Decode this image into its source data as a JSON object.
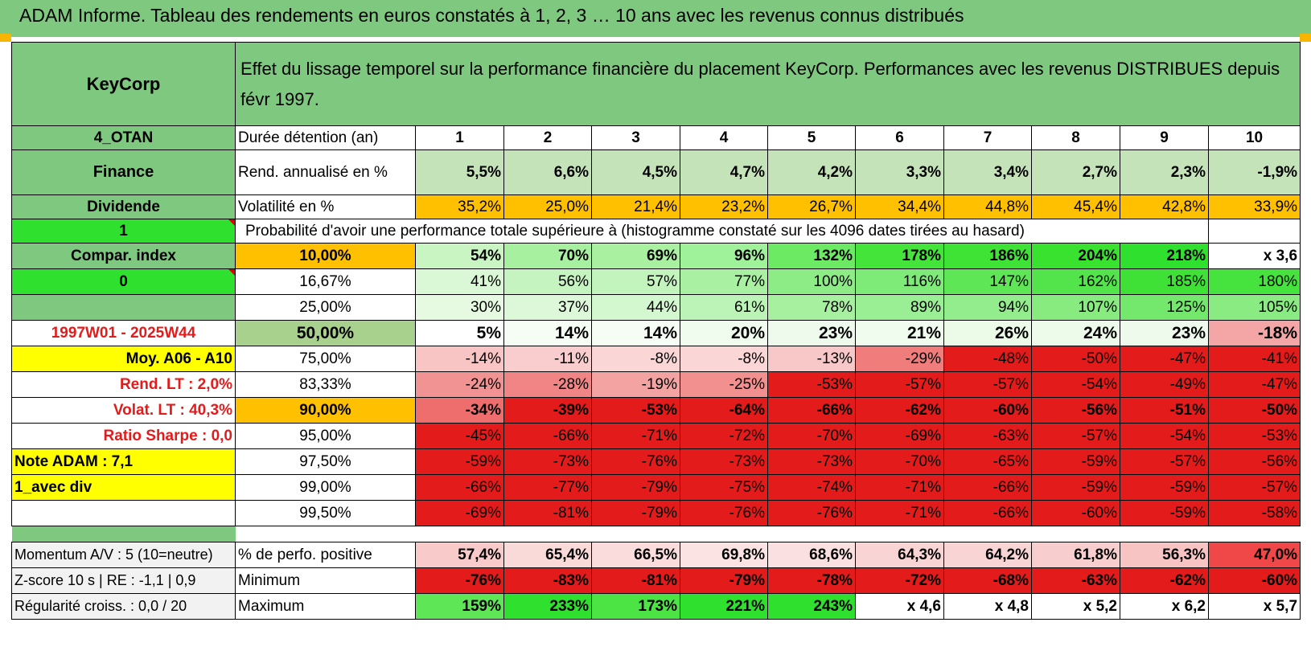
{
  "title": "ADAM Informe. Tableau des rendements en euros constatés à 1, 2, 3 … 10 ans avec les revenus connus distribués",
  "header": {
    "name": "KeyCorp",
    "description": "Effet du lissage temporel sur la performance financière du placement KeyCorp. Performances avec les revenus DISTRIBUES depuis févr 1997."
  },
  "left": {
    "r1": "4_OTAN",
    "r2": "Finance",
    "r3": "Dividende",
    "r4": "1",
    "r5": "Compar. index",
    "r6": "0",
    "r7": "",
    "r8": "1997W01 - 2025W44",
    "r9": "Moy. A06 - A10",
    "r10": "Rend. LT :    2,0%",
    "r11": "Volat. LT :    40,3%",
    "r12": "Ratio Sharpe :     0,0",
    "r13": "Note ADAM : 7,1",
    "r14": "1_avec div",
    "r15": "",
    "m1": "Momentum A/V : 5 (10=neutre)",
    "m2": "Z-score 10 s | RE : -1,1 | 0,9",
    "m3": "Régularité croiss. : 0,0 / 20"
  },
  "labels": {
    "duration": "Durée détention (an)",
    "rend": "Rend. annualisé en %",
    "vol": "Volatilité en %",
    "prob": "Probabilité d'avoir une performance totale supérieure à (histogramme constaté sur les 4096 dates tirées au hasard)",
    "pos": "% de perfo. positive",
    "min": "Minimum",
    "max": "Maximum"
  },
  "years": [
    "1",
    "2",
    "3",
    "4",
    "5",
    "6",
    "7",
    "8",
    "9",
    "10"
  ],
  "rend": [
    "5,5%",
    "6,6%",
    "4,5%",
    "4,7%",
    "4,2%",
    "3,3%",
    "3,4%",
    "2,7%",
    "2,3%",
    "-1,9%"
  ],
  "vol": [
    "35,2%",
    "25,0%",
    "21,4%",
    "23,2%",
    "26,7%",
    "34,4%",
    "44,8%",
    "45,4%",
    "42,8%",
    "33,9%"
  ],
  "vol_colors": [
    "#ffc000",
    "#ffc000",
    "#ffc000",
    "#ffc000",
    "#ffc000",
    "#ffc000",
    "#ffc000",
    "#ffc000",
    "#ffc000",
    "#ffc000"
  ],
  "prob_rows": [
    {
      "label": "10,00%",
      "label_bg": "#ffc000",
      "bold": true,
      "values": [
        "54%",
        "70%",
        "69%",
        "96%",
        "132%",
        "178%",
        "186%",
        "204%",
        "218%",
        "x 3,6"
      ],
      "colors": [
        "#c9f5c3",
        "#a7f09f",
        "#a9f0a1",
        "#9ff29a",
        "#6cea63",
        "#45e43b",
        "#3fe335",
        "#3ae230",
        "#2fe02f",
        "#ffffff"
      ]
    },
    {
      "label": "16,67%",
      "label_bg": "#ffffff",
      "bold": false,
      "values": [
        "41%",
        "56%",
        "57%",
        "77%",
        "100%",
        "116%",
        "147%",
        "162%",
        "185%",
        "180%"
      ],
      "colors": [
        "#dbf8d6",
        "#c6f4c1",
        "#c3f4bd",
        "#a9f0a3",
        "#8eec87",
        "#7eea77",
        "#5fe657",
        "#52e44a",
        "#40e137",
        "#46e23d"
      ]
    },
    {
      "label": "25,00%",
      "label_bg": "#ffffff",
      "bold": false,
      "values": [
        "30%",
        "37%",
        "44%",
        "61%",
        "78%",
        "89%",
        "94%",
        "107%",
        "125%",
        "105%"
      ],
      "colors": [
        "#e6fae2",
        "#ddf8d9",
        "#d3f7ce",
        "#bcf3b6",
        "#a6f0a0",
        "#9aee93",
        "#94ed8d",
        "#87eb80",
        "#74e86c",
        "#89eb82"
      ]
    },
    {
      "label": "50,00%",
      "label_bg": "#a9d18e",
      "bold": true,
      "big": true,
      "values": [
        "5%",
        "14%",
        "14%",
        "20%",
        "23%",
        "21%",
        "26%",
        "24%",
        "23%",
        "-18%"
      ],
      "colors": [
        "#ffffff",
        "#f6fdf5",
        "#f6fdf5",
        "#f0fcee",
        "#eefbec",
        "#f0fcee",
        "#ebfbe8",
        "#edfbea",
        "#eefbec",
        "#f4a6a6"
      ]
    },
    {
      "label": "75,00%",
      "label_bg": "#ffffff",
      "bold": false,
      "values": [
        "-14%",
        "-11%",
        "-8%",
        "-8%",
        "-13%",
        "-29%",
        "-48%",
        "-50%",
        "-47%",
        "-41%"
      ],
      "colors": [
        "#f8c4c4",
        "#f9cdcd",
        "#fad6d6",
        "#fad6d6",
        "#f8c7c7",
        "#f07c7c",
        "#e31b1b",
        "#e31b1b",
        "#e31b1b",
        "#e31b1b"
      ]
    },
    {
      "label": "83,33%",
      "label_bg": "#ffffff",
      "bold": false,
      "values": [
        "-24%",
        "-28%",
        "-19%",
        "-25%",
        "-53%",
        "-57%",
        "-57%",
        "-54%",
        "-49%",
        "-47%"
      ],
      "colors": [
        "#f29393",
        "#f18484",
        "#f4a3a3",
        "#f29090",
        "#e31b1b",
        "#e31b1b",
        "#e31b1b",
        "#e31b1b",
        "#e31b1b",
        "#e31b1b"
      ]
    },
    {
      "label": "90,00%",
      "label_bg": "#ffc000",
      "bold": true,
      "values": [
        "-34%",
        "-39%",
        "-53%",
        "-64%",
        "-66%",
        "-62%",
        "-60%",
        "-56%",
        "-51%",
        "-50%"
      ],
      "colors": [
        "#ee6e6e",
        "#e31b1b",
        "#e31b1b",
        "#e31b1b",
        "#e31b1b",
        "#e31b1b",
        "#e31b1b",
        "#e31b1b",
        "#e31b1b",
        "#e31b1b"
      ]
    },
    {
      "label": "95,00%",
      "label_bg": "#ffffff",
      "bold": false,
      "values": [
        "-45%",
        "-66%",
        "-71%",
        "-72%",
        "-70%",
        "-69%",
        "-63%",
        "-57%",
        "-54%",
        "-53%"
      ],
      "colors": [
        "#e31b1b",
        "#e31b1b",
        "#e31b1b",
        "#e31b1b",
        "#e31b1b",
        "#e31b1b",
        "#e31b1b",
        "#e31b1b",
        "#e31b1b",
        "#e31b1b"
      ]
    },
    {
      "label": "97,50%",
      "label_bg": "#ffffff",
      "bold": false,
      "values": [
        "-59%",
        "-73%",
        "-76%",
        "-73%",
        "-73%",
        "-70%",
        "-65%",
        "-59%",
        "-57%",
        "-56%"
      ],
      "colors": [
        "#e31b1b",
        "#e31b1b",
        "#e31b1b",
        "#e31b1b",
        "#e31b1b",
        "#e31b1b",
        "#e31b1b",
        "#e31b1b",
        "#e31b1b",
        "#e31b1b"
      ]
    },
    {
      "label": "99,00%",
      "label_bg": "#ffffff",
      "bold": false,
      "values": [
        "-66%",
        "-77%",
        "-79%",
        "-75%",
        "-74%",
        "-71%",
        "-66%",
        "-59%",
        "-59%",
        "-57%"
      ],
      "colors": [
        "#e31b1b",
        "#e31b1b",
        "#e31b1b",
        "#e31b1b",
        "#e31b1b",
        "#e31b1b",
        "#e31b1b",
        "#e31b1b",
        "#e31b1b",
        "#e31b1b"
      ]
    },
    {
      "label": "99,50%",
      "label_bg": "#ffffff",
      "bold": false,
      "values": [
        "-69%",
        "-81%",
        "-79%",
        "-76%",
        "-76%",
        "-71%",
        "-66%",
        "-60%",
        "-59%",
        "-58%"
      ],
      "colors": [
        "#e31b1b",
        "#e31b1b",
        "#e31b1b",
        "#e31b1b",
        "#e31b1b",
        "#e31b1b",
        "#e31b1b",
        "#e31b1b",
        "#e31b1b",
        "#e31b1b"
      ]
    }
  ],
  "pos": [
    "57,4%",
    "65,4%",
    "66,5%",
    "69,8%",
    "68,6%",
    "64,3%",
    "64,2%",
    "61,8%",
    "56,3%",
    "47,0%"
  ],
  "pos_colors": [
    "#f8caca",
    "#fad9d9",
    "#fadcdc",
    "#fbe3e3",
    "#fae0e0",
    "#f9d4d4",
    "#f9d4d4",
    "#f8cdcd",
    "#f7c3c3",
    "#f04848"
  ],
  "min": [
    "-76%",
    "-83%",
    "-81%",
    "-79%",
    "-78%",
    "-72%",
    "-68%",
    "-63%",
    "-62%",
    "-60%"
  ],
  "max": [
    "159%",
    "233%",
    "173%",
    "221%",
    "243%",
    "x 4,6",
    "x 4,8",
    "x 5,2",
    "x 6,2",
    "x 5,7"
  ],
  "max_colors": [
    "#5fe657",
    "#2fe02f",
    "#4ce344",
    "#2fe02f",
    "#2fe02f",
    "#ffffff",
    "#ffffff",
    "#ffffff",
    "#ffffff",
    "#ffffff"
  ]
}
